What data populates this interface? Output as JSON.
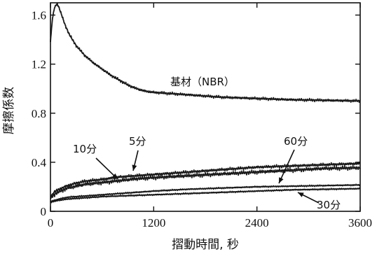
{
  "chart_data": {
    "type": "line",
    "title": "",
    "xlabel": "摺動時間, 秒",
    "ylabel": "摩擦係数",
    "xlim": [
      0,
      3600
    ],
    "ylim": [
      0,
      1.7
    ],
    "xticks": [
      0,
      1200,
      2400,
      3600
    ],
    "xtick_labels": [
      "0",
      "1200",
      "2400",
      "3600"
    ],
    "yticks": [
      0,
      0.4,
      0.8,
      1.2,
      1.6
    ],
    "ytick_labels": [
      "0",
      "0.4",
      "0.8",
      "1.2",
      "1.6"
    ],
    "grid": false,
    "legend": "none (series labeled inline with arrows)",
    "colors": {
      "line": "#1a1a1a",
      "axis": "#111111"
    },
    "series": [
      {
        "name": "基材（NBR）",
        "points": [
          [
            0,
            1.38
          ],
          [
            20,
            1.55
          ],
          [
            40,
            1.64
          ],
          [
            60,
            1.68
          ],
          [
            80,
            1.69
          ],
          [
            100,
            1.66
          ],
          [
            130,
            1.6
          ],
          [
            170,
            1.52
          ],
          [
            220,
            1.44
          ],
          [
            300,
            1.35
          ],
          [
            400,
            1.27
          ],
          [
            500,
            1.21
          ],
          [
            600,
            1.16
          ],
          [
            700,
            1.11
          ],
          [
            800,
            1.07
          ],
          [
            900,
            1.03
          ],
          [
            1000,
            1.0
          ],
          [
            1100,
            0.98
          ],
          [
            1200,
            0.97
          ],
          [
            1400,
            0.96
          ],
          [
            1600,
            0.95
          ],
          [
            1800,
            0.94
          ],
          [
            2000,
            0.93
          ],
          [
            2400,
            0.92
          ],
          [
            2800,
            0.91
          ],
          [
            3200,
            0.905
          ],
          [
            3600,
            0.9
          ]
        ]
      },
      {
        "name": "10分",
        "points": [
          [
            0,
            0.12
          ],
          [
            50,
            0.16
          ],
          [
            100,
            0.18
          ],
          [
            200,
            0.21
          ],
          [
            300,
            0.23
          ],
          [
            400,
            0.245
          ],
          [
            600,
            0.26
          ],
          [
            800,
            0.28
          ],
          [
            1000,
            0.29
          ],
          [
            1200,
            0.3
          ],
          [
            1600,
            0.32
          ],
          [
            2000,
            0.34
          ],
          [
            2400,
            0.36
          ],
          [
            2800,
            0.37
          ],
          [
            3200,
            0.38
          ],
          [
            3600,
            0.39
          ]
        ]
      },
      {
        "name": "5分",
        "points": [
          [
            0,
            0.11
          ],
          [
            50,
            0.14
          ],
          [
            100,
            0.16
          ],
          [
            200,
            0.19
          ],
          [
            300,
            0.205
          ],
          [
            400,
            0.22
          ],
          [
            600,
            0.235
          ],
          [
            800,
            0.25
          ],
          [
            1000,
            0.265
          ],
          [
            1200,
            0.275
          ],
          [
            1600,
            0.29
          ],
          [
            2000,
            0.305
          ],
          [
            2400,
            0.32
          ],
          [
            2800,
            0.335
          ],
          [
            3200,
            0.35
          ],
          [
            3600,
            0.355
          ]
        ]
      },
      {
        "name": "60分",
        "points": [
          [
            0,
            0.08
          ],
          [
            100,
            0.1
          ],
          [
            200,
            0.115
          ],
          [
            400,
            0.125
          ],
          [
            600,
            0.135
          ],
          [
            800,
            0.145
          ],
          [
            1000,
            0.155
          ],
          [
            1200,
            0.165
          ],
          [
            1600,
            0.18
          ],
          [
            2000,
            0.19
          ],
          [
            2400,
            0.2
          ],
          [
            2800,
            0.205
          ],
          [
            3200,
            0.21
          ],
          [
            3600,
            0.215
          ]
        ]
      },
      {
        "name": "30分",
        "points": [
          [
            0,
            0.075
          ],
          [
            100,
            0.09
          ],
          [
            200,
            0.1
          ],
          [
            400,
            0.11
          ],
          [
            600,
            0.12
          ],
          [
            800,
            0.125
          ],
          [
            1000,
            0.13
          ],
          [
            1200,
            0.135
          ],
          [
            1600,
            0.145
          ],
          [
            2000,
            0.155
          ],
          [
            2400,
            0.165
          ],
          [
            2800,
            0.175
          ],
          [
            3200,
            0.18
          ],
          [
            3600,
            0.185
          ]
        ]
      }
    ]
  }
}
